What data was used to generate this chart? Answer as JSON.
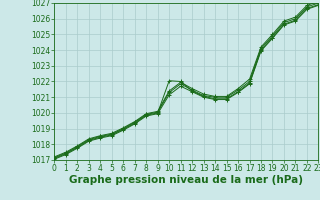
{
  "title": "Graphe pression niveau de la mer (hPa)",
  "xlim": [
    0,
    23
  ],
  "ylim": [
    1017,
    1027
  ],
  "yticks": [
    1017,
    1018,
    1019,
    1020,
    1021,
    1022,
    1023,
    1024,
    1025,
    1026,
    1027
  ],
  "xticks": [
    0,
    1,
    2,
    3,
    4,
    5,
    6,
    7,
    8,
    9,
    10,
    11,
    12,
    13,
    14,
    15,
    16,
    17,
    18,
    19,
    20,
    21,
    22,
    23
  ],
  "background_color": "#cce8e8",
  "grid_color": "#aacccc",
  "line_color": "#1a6b1a",
  "title_fontsize": 7.5,
  "tick_fontsize": 5.5,
  "series": [
    [
      1017.2,
      1017.5,
      1017.9,
      1018.35,
      1018.55,
      1018.7,
      1019.05,
      1019.45,
      1019.95,
      1020.1,
      1021.4,
      1021.95,
      1021.55,
      1021.2,
      1021.05,
      1021.05,
      1021.55,
      1022.15,
      1024.2,
      1025.0,
      1025.85,
      1026.1,
      1026.85,
      1027.1
    ],
    [
      1017.15,
      1017.45,
      1017.85,
      1018.3,
      1018.5,
      1018.65,
      1019.0,
      1019.4,
      1019.9,
      1020.05,
      1021.3,
      1021.85,
      1021.45,
      1021.1,
      1021.0,
      1021.0,
      1021.45,
      1022.0,
      1024.1,
      1024.9,
      1025.75,
      1026.0,
      1026.75,
      1027.0
    ],
    [
      1017.05,
      1017.35,
      1017.75,
      1018.2,
      1018.4,
      1018.55,
      1018.9,
      1019.3,
      1019.8,
      1019.95,
      1021.15,
      1021.7,
      1021.35,
      1021.0,
      1020.85,
      1020.85,
      1021.3,
      1021.85,
      1023.95,
      1024.75,
      1025.6,
      1025.85,
      1026.6,
      1026.85
    ],
    [
      1017.1,
      1017.4,
      1017.8,
      1018.25,
      1018.45,
      1018.6,
      1018.95,
      1019.35,
      1019.85,
      1020.0,
      1022.05,
      1022.0,
      1021.4,
      1021.05,
      1020.9,
      1020.9,
      1021.35,
      1021.9,
      1024.0,
      1024.8,
      1025.65,
      1025.9,
      1026.65,
      1026.9
    ]
  ],
  "marker_series": [
    [
      1017.2,
      1017.5,
      1017.9,
      1018.35,
      1018.55,
      1018.7,
      1019.05,
      1019.45,
      1019.95,
      1020.1,
      1021.4,
      1021.95,
      1021.55,
      1021.2,
      1021.05,
      1021.05,
      1021.55,
      1022.15,
      1024.2,
      1025.0,
      1025.85,
      1026.1,
      1026.85,
      1027.1
    ],
    [
      1017.15,
      1017.45,
      1017.85,
      1018.3,
      1018.5,
      1018.65,
      1019.0,
      1019.4,
      1019.9,
      1020.05,
      1021.3,
      1021.85,
      1021.45,
      1021.1,
      1021.0,
      1021.0,
      1021.45,
      1022.0,
      1024.1,
      1024.9,
      1025.75,
      1026.0,
      1026.75,
      1027.0
    ],
    [
      1017.05,
      1017.35,
      1017.75,
      1018.2,
      1018.4,
      1018.55,
      1018.9,
      1019.3,
      1019.8,
      1019.95,
      1021.15,
      1021.7,
      1021.35,
      1021.0,
      1020.85,
      1020.85,
      1021.3,
      1021.85,
      1023.95,
      1024.75,
      1025.6,
      1025.85,
      1026.6,
      1026.85
    ],
    [
      1017.1,
      1017.4,
      1017.8,
      1018.25,
      1018.45,
      1018.6,
      1018.95,
      1019.35,
      1019.85,
      1020.0,
      1022.05,
      1022.0,
      1021.4,
      1021.05,
      1020.9,
      1020.9,
      1021.35,
      1021.9,
      1024.0,
      1024.8,
      1025.65,
      1025.9,
      1026.65,
      1026.9
    ]
  ]
}
